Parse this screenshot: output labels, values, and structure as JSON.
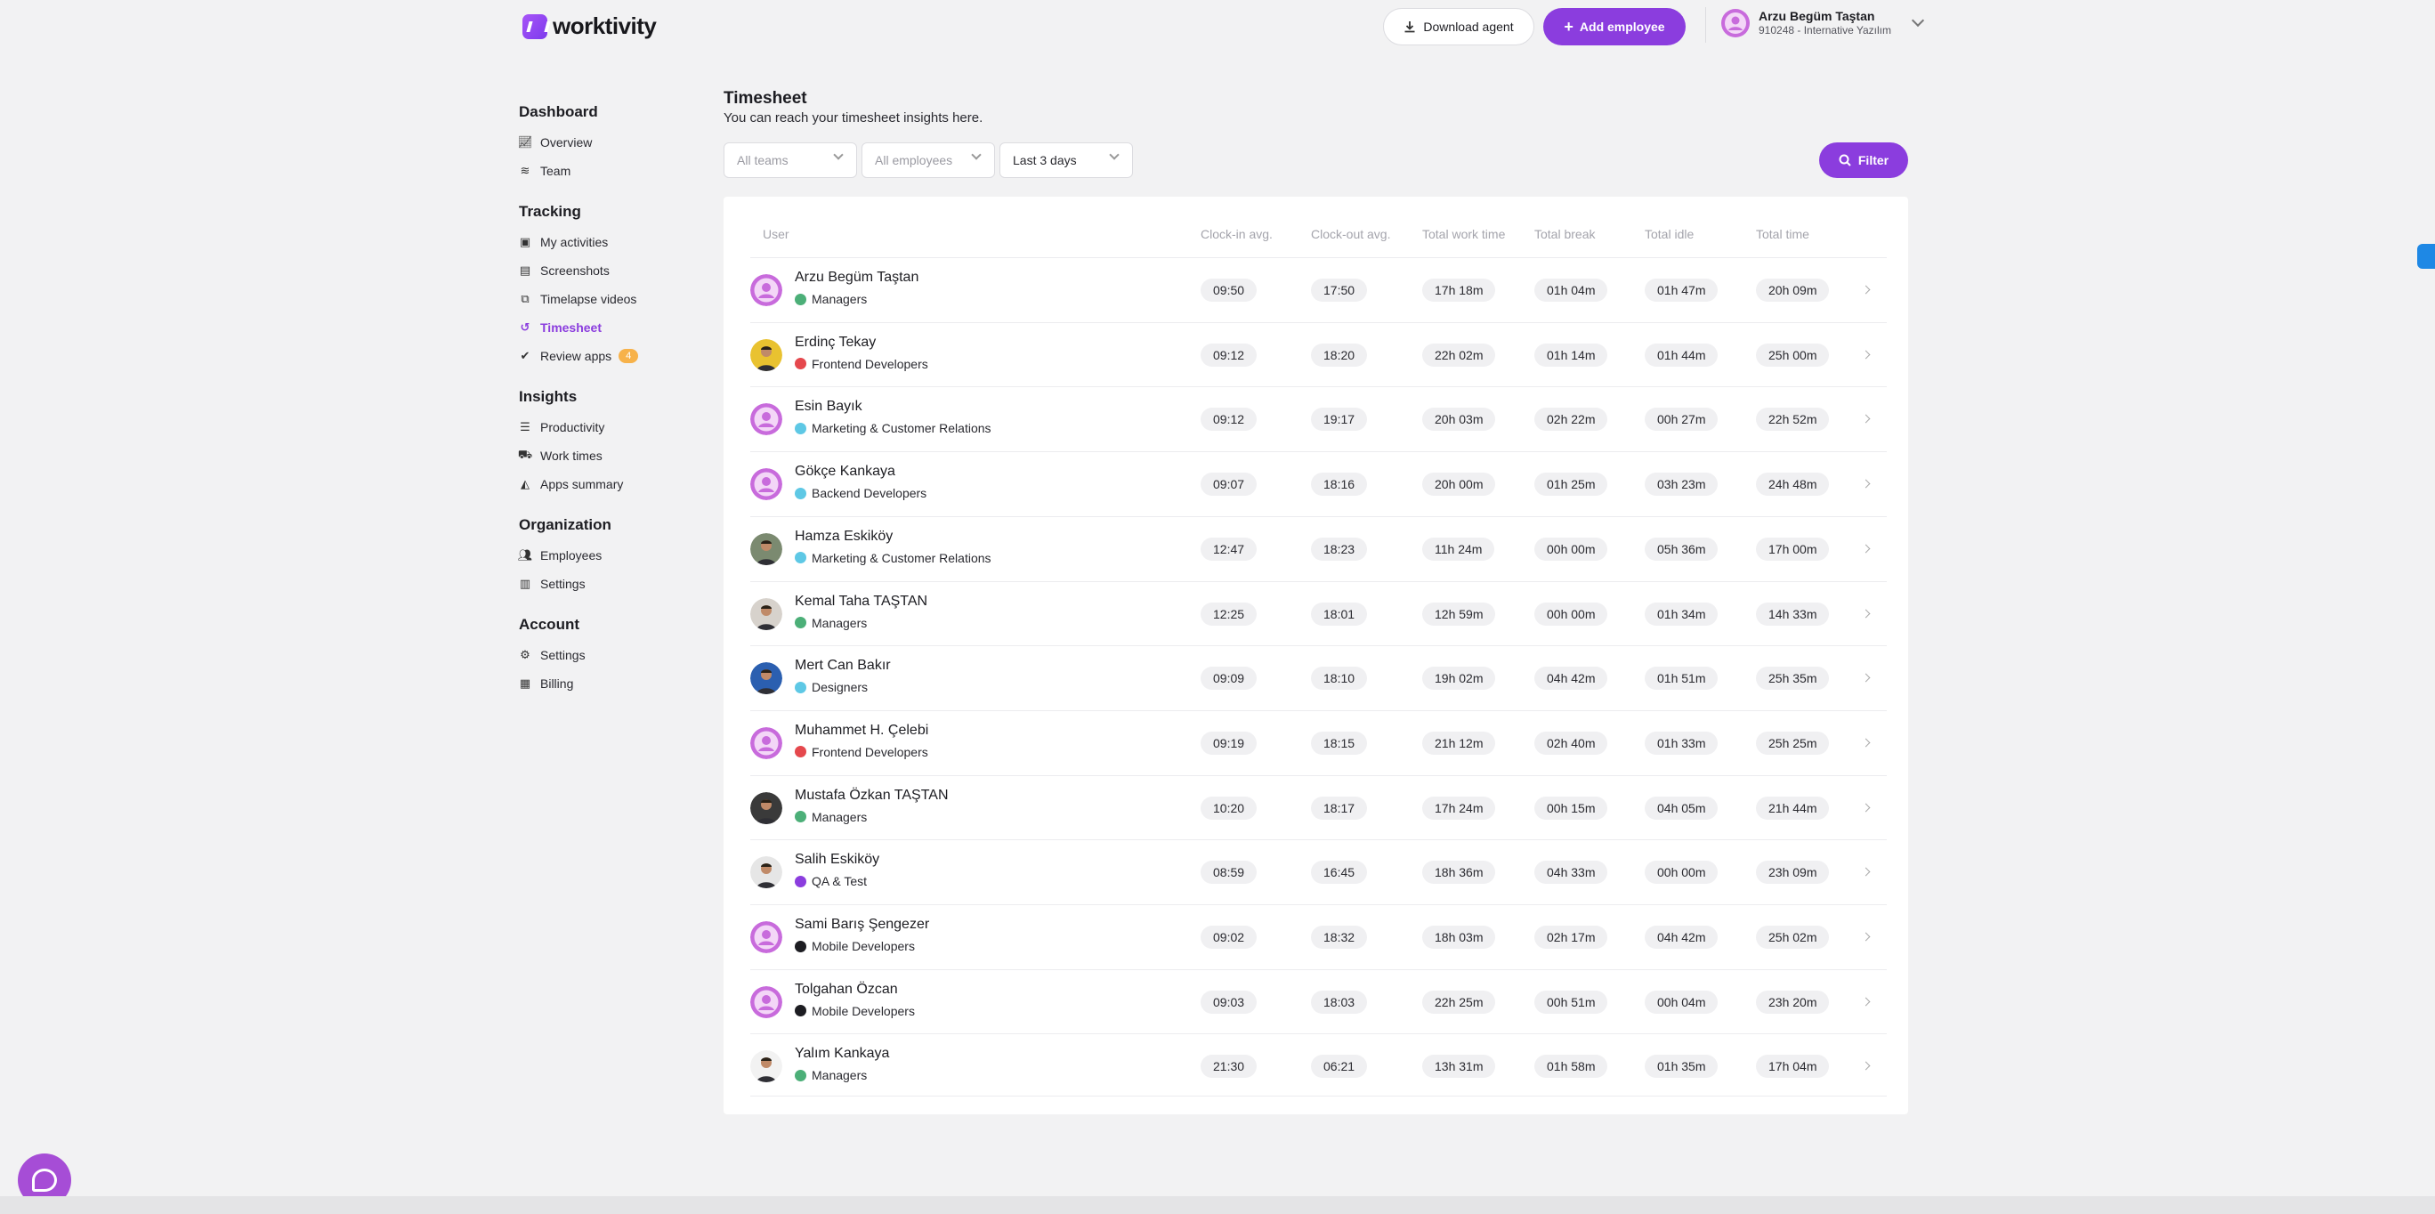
{
  "brand": {
    "name": "worktivity"
  },
  "header": {
    "download_label": "Download agent",
    "add_employee_label": "Add employee",
    "user_name": "Arzu Begüm Taştan",
    "user_org": "910248 - Internative Yazılım"
  },
  "sidebar": {
    "dashboard": {
      "title": "Dashboard",
      "items": [
        {
          "label": "Overview",
          "icon": "chart-line-icon"
        },
        {
          "label": "Team",
          "icon": "layers-icon"
        }
      ]
    },
    "tracking": {
      "title": "Tracking",
      "items": [
        {
          "label": "My activities",
          "icon": "activity-icon"
        },
        {
          "label": "Screenshots",
          "icon": "screenshot-icon"
        },
        {
          "label": "Timelapse videos",
          "icon": "video-icon"
        },
        {
          "label": "Timesheet",
          "icon": "history-icon",
          "active": true
        },
        {
          "label": "Review apps",
          "icon": "check-circle-icon",
          "badge": "4"
        }
      ]
    },
    "insights": {
      "title": "Insights",
      "items": [
        {
          "label": "Productivity",
          "icon": "list-icon"
        },
        {
          "label": "Work times",
          "icon": "truck-icon"
        },
        {
          "label": "Apps summary",
          "icon": "shapes-icon"
        }
      ]
    },
    "organization": {
      "title": "Organization",
      "items": [
        {
          "label": "Employees",
          "icon": "users-icon"
        },
        {
          "label": "Settings",
          "icon": "building-icon"
        }
      ]
    },
    "account": {
      "title": "Account",
      "items": [
        {
          "label": "Settings",
          "icon": "user-gear-icon"
        },
        {
          "label": "Billing",
          "icon": "receipt-icon"
        }
      ]
    }
  },
  "main": {
    "title": "Timesheet",
    "subtitle": "You can reach your timesheet insights here.",
    "filters": {
      "teams": "All teams",
      "employees": "All employees",
      "range": "Last 3 days"
    },
    "filter_button": "Filter"
  },
  "table": {
    "columns": [
      "User",
      "Clock-in avg.",
      "Clock-out avg.",
      "Total work time",
      "Total break",
      "Total idle",
      "Total time"
    ],
    "rows": [
      {
        "name": "Arzu Begüm Taştan",
        "team": "Managers",
        "team_color": "#4caf78",
        "avatar": "default",
        "clock_in": "09:50",
        "clock_out": "17:50",
        "work": "17h 18m",
        "break": "01h 04m",
        "idle": "01h 47m",
        "total": "20h 09m"
      },
      {
        "name": "Erdinç Tekay",
        "team": "Frontend Developers",
        "team_color": "#e5484d",
        "avatar": "photo-yellow",
        "clock_in": "09:12",
        "clock_out": "18:20",
        "work": "22h 02m",
        "break": "01h 14m",
        "idle": "01h 44m",
        "total": "25h 00m"
      },
      {
        "name": "Esin Bayık",
        "team": "Marketing & Customer Relations",
        "team_color": "#5ec8e5",
        "avatar": "default",
        "clock_in": "09:12",
        "clock_out": "19:17",
        "work": "20h 03m",
        "break": "02h 22m",
        "idle": "00h 27m",
        "total": "22h 52m"
      },
      {
        "name": "Gökçe Kankaya",
        "team": "Backend Developers",
        "team_color": "#5ec8e5",
        "avatar": "default",
        "clock_in": "09:07",
        "clock_out": "18:16",
        "work": "20h 00m",
        "break": "01h 25m",
        "idle": "03h 23m",
        "total": "24h 48m"
      },
      {
        "name": "Hamza Eskiköy",
        "team": "Marketing & Customer Relations",
        "team_color": "#5ec8e5",
        "avatar": "photo-outdoor",
        "clock_in": "12:47",
        "clock_out": "18:23",
        "work": "11h 24m",
        "break": "00h 00m",
        "idle": "05h 36m",
        "total": "17h 00m"
      },
      {
        "name": "Kemal Taha TAŞTAN",
        "team": "Managers",
        "team_color": "#4caf78",
        "avatar": "photo-man",
        "clock_in": "12:25",
        "clock_out": "18:01",
        "work": "12h 59m",
        "break": "00h 00m",
        "idle": "01h 34m",
        "total": "14h 33m"
      },
      {
        "name": "Mert Can Bakır",
        "team": "Designers",
        "team_color": "#5ec8e5",
        "avatar": "photo-blue",
        "clock_in": "09:09",
        "clock_out": "18:10",
        "work": "19h 02m",
        "break": "04h 42m",
        "idle": "01h 51m",
        "total": "25h 35m"
      },
      {
        "name": "Muhammet H. Çelebi",
        "team": "Frontend Developers",
        "team_color": "#e5484d",
        "avatar": "default",
        "clock_in": "09:19",
        "clock_out": "18:15",
        "work": "21h 12m",
        "break": "02h 40m",
        "idle": "01h 33m",
        "total": "25h 25m"
      },
      {
        "name": "Mustafa Özkan TAŞTAN",
        "team": "Managers",
        "team_color": "#4caf78",
        "avatar": "photo-dark",
        "clock_in": "10:20",
        "clock_out": "18:17",
        "work": "17h 24m",
        "break": "00h 15m",
        "idle": "04h 05m",
        "total": "21h 44m"
      },
      {
        "name": "Salih Eskiköy",
        "team": "QA & Test",
        "team_color": "#8b3dde",
        "avatar": "photo-bearded",
        "clock_in": "08:59",
        "clock_out": "16:45",
        "work": "18h 36m",
        "break": "04h 33m",
        "idle": "00h 00m",
        "total": "23h 09m"
      },
      {
        "name": "Sami Barış Şengezer",
        "team": "Mobile Developers",
        "team_color": "#1d1d22",
        "avatar": "default",
        "clock_in": "09:02",
        "clock_out": "18:32",
        "work": "18h 03m",
        "break": "02h 17m",
        "idle": "04h 42m",
        "total": "25h 02m"
      },
      {
        "name": "Tolgahan Özcan",
        "team": "Mobile Developers",
        "team_color": "#1d1d22",
        "avatar": "default",
        "clock_in": "09:03",
        "clock_out": "18:03",
        "work": "22h 25m",
        "break": "00h 51m",
        "idle": "00h 04m",
        "total": "23h 20m"
      },
      {
        "name": "Yalım Kankaya",
        "team": "Managers",
        "team_color": "#4caf78",
        "avatar": "photo-standing",
        "clock_in": "21:30",
        "clock_out": "06:21",
        "work": "13h 31m",
        "break": "01h 58m",
        "idle": "01h 35m",
        "total": "17h 04m"
      }
    ]
  },
  "colors": {
    "accent": "#8b3dde",
    "badge": "#f7b24a",
    "background": "#f2f2f3"
  }
}
